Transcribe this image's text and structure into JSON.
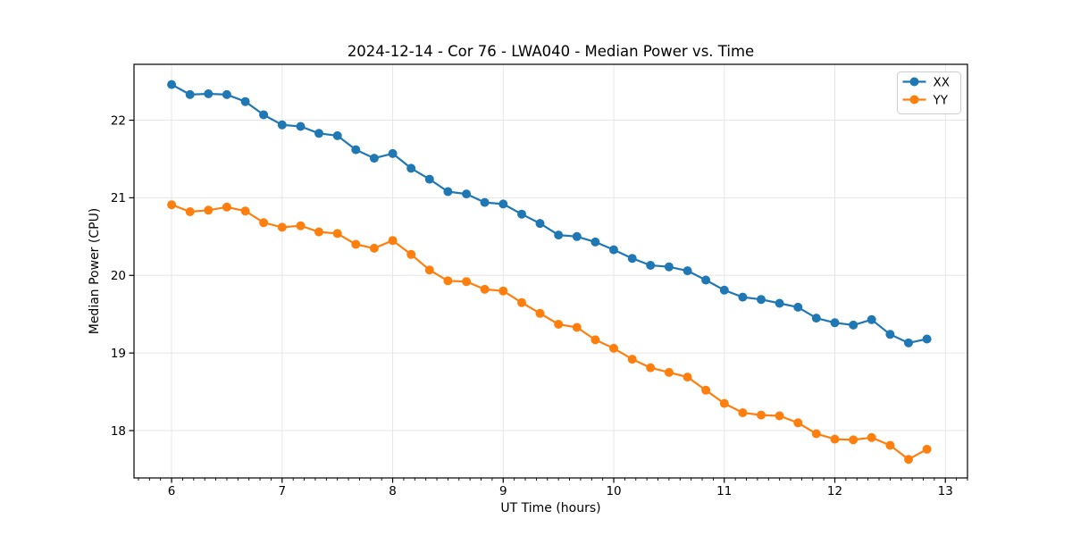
{
  "figure": {
    "background": "#ffffff"
  },
  "chart_data": {
    "type": "line",
    "title": "2024-12-14 - Cor 76 - LWA040 - Median Power vs. Time",
    "xlabel": "UT Time (hours)",
    "ylabel": "Median Power (CPU)",
    "xlim": [
      5.66,
      13.2
    ],
    "ylim": [
      17.39,
      22.72
    ],
    "xticks": [
      6,
      7,
      8,
      9,
      10,
      11,
      12,
      13
    ],
    "yticks": [
      18,
      19,
      20,
      21,
      22
    ],
    "x_minor_step": 0.1,
    "grid": true,
    "grid_color": "#e6e6e6",
    "spine_color": "#000000",
    "legend_position": "upper right",
    "x": [
      6.0,
      6.167,
      6.333,
      6.5,
      6.667,
      6.833,
      7.0,
      7.167,
      7.333,
      7.5,
      7.667,
      7.833,
      8.0,
      8.167,
      8.333,
      8.5,
      8.667,
      8.833,
      9.0,
      9.167,
      9.333,
      9.5,
      9.667,
      9.833,
      10.0,
      10.167,
      10.333,
      10.5,
      10.667,
      10.833,
      11.0,
      11.167,
      11.333,
      11.5,
      11.667,
      11.833,
      12.0,
      12.167,
      12.333,
      12.5,
      12.667,
      12.833
    ],
    "series": [
      {
        "name": "XX",
        "color": "#1f77b4",
        "marker": "circle",
        "values": [
          22.46,
          22.33,
          22.34,
          22.33,
          22.24,
          22.07,
          21.94,
          21.92,
          21.83,
          21.8,
          21.62,
          21.51,
          21.57,
          21.38,
          21.24,
          21.08,
          21.05,
          20.94,
          20.92,
          20.79,
          20.67,
          20.52,
          20.5,
          20.43,
          20.33,
          20.22,
          20.13,
          20.11,
          20.06,
          19.94,
          19.81,
          19.72,
          19.69,
          19.64,
          19.59,
          19.45,
          19.39,
          19.36,
          19.43,
          19.24,
          19.13,
          19.18
        ]
      },
      {
        "name": "YY",
        "color": "#ff7f0e",
        "marker": "circle",
        "values": [
          20.91,
          20.82,
          20.84,
          20.88,
          20.83,
          20.68,
          20.62,
          20.64,
          20.56,
          20.54,
          20.4,
          20.35,
          20.45,
          20.27,
          20.07,
          19.93,
          19.92,
          19.82,
          19.8,
          19.65,
          19.51,
          19.37,
          19.33,
          19.17,
          19.06,
          18.92,
          18.81,
          18.75,
          18.69,
          18.52,
          18.35,
          18.23,
          18.2,
          18.19,
          18.1,
          17.96,
          17.89,
          17.88,
          17.91,
          17.81,
          17.63,
          17.76
        ]
      }
    ]
  }
}
